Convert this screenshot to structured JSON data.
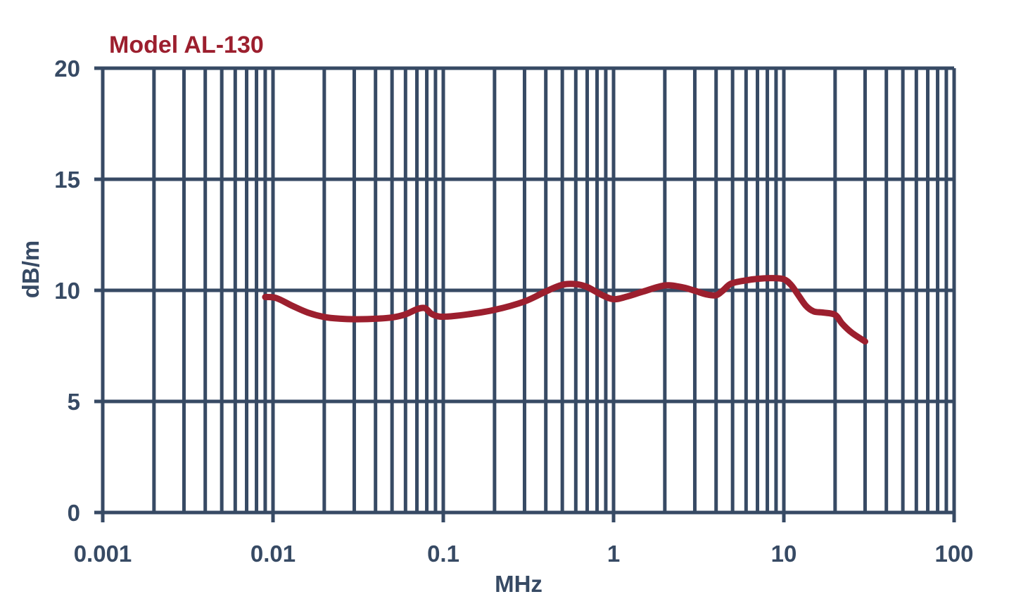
{
  "chart_data": {
    "type": "line",
    "title": "Model AL-130",
    "xlabel": "MHz",
    "ylabel": "dB/m",
    "xscale": "log",
    "xlim": [
      0.001,
      100
    ],
    "ylim": [
      0,
      20
    ],
    "x_ticks": [
      0.001,
      0.01,
      0.1,
      1,
      10,
      100
    ],
    "x_tick_labels": [
      "0.001",
      "0.01",
      "0.1",
      "1",
      "10",
      "100"
    ],
    "y_ticks": [
      0,
      5,
      10,
      15,
      20
    ],
    "y_tick_labels": [
      "0",
      "5",
      "10",
      "15",
      "20"
    ],
    "grid": true,
    "colors": {
      "axis": "#374a64",
      "series": "#9c1f2e"
    },
    "series": [
      {
        "x": [
          0.009,
          0.0105,
          0.013,
          0.016,
          0.02,
          0.025,
          0.03,
          0.04,
          0.05,
          0.06,
          0.07,
          0.078,
          0.085,
          0.095,
          0.11,
          0.14,
          0.2,
          0.3,
          0.4,
          0.5,
          0.6,
          0.7,
          0.85,
          1.0,
          1.2,
          1.5,
          2.0,
          2.5,
          3.0,
          3.5,
          4.0,
          4.4,
          4.9,
          6.0,
          7.0,
          8.5,
          10.0,
          11.0,
          12.0,
          13.5,
          15.0,
          17.0,
          20.0,
          22.0,
          25.0,
          30.0
        ],
        "y": [
          9.7,
          9.65,
          9.3,
          9.0,
          8.8,
          8.72,
          8.7,
          8.72,
          8.78,
          8.92,
          9.15,
          9.2,
          8.95,
          8.82,
          8.83,
          8.92,
          9.12,
          9.5,
          9.95,
          10.25,
          10.28,
          10.15,
          9.8,
          9.6,
          9.72,
          9.95,
          10.22,
          10.15,
          9.98,
          9.82,
          9.78,
          10.0,
          10.3,
          10.45,
          10.52,
          10.55,
          10.5,
          10.25,
          9.85,
          9.3,
          9.05,
          9.0,
          8.9,
          8.5,
          8.1,
          7.7
        ]
      }
    ]
  }
}
